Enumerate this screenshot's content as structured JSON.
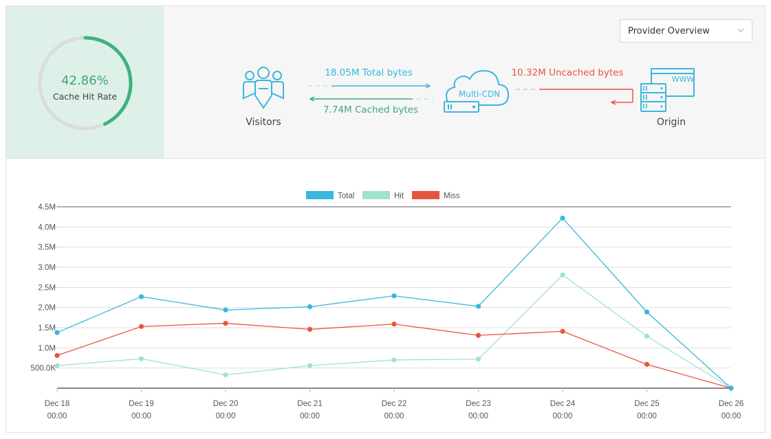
{
  "gauge": {
    "percent_text": "42.86%",
    "percent_value": 42.86,
    "label": "Cache Hit Rate"
  },
  "dropdown": {
    "selected": "Provider Overview"
  },
  "flow": {
    "visitors_label": "Visitors",
    "cdn_label": "Multi-CDN",
    "origin_label": "Origin",
    "www_label": "WWW",
    "total_bytes": "18.05M Total bytes",
    "cached_bytes": "7.74M Cached bytes",
    "uncached_bytes": "10.32M Uncached bytes"
  },
  "colors": {
    "total": "#3bb6de",
    "hit": "#9fe3cd",
    "miss": "#e8553e",
    "gauge": "#3db37e",
    "cached": "#3aaa7a"
  },
  "chart_data": {
    "type": "line",
    "x": [
      "Dec 18",
      "Dec 19",
      "Dec 20",
      "Dec 21",
      "Dec 22",
      "Dec 23",
      "Dec 24",
      "Dec 25",
      "Dec 26"
    ],
    "x_sublabels": [
      "00:00",
      "00:00",
      "00:00",
      "00:00",
      "00:00",
      "00:00",
      "00:00",
      "00:00",
      "00:00"
    ],
    "series": [
      {
        "name": "Total",
        "color": "#3bb6de",
        "values": [
          1380000,
          2270000,
          1940000,
          2020000,
          2290000,
          2030000,
          4220000,
          1890000,
          0
        ]
      },
      {
        "name": "Hit",
        "color": "#9fe3cd",
        "values": [
          560000,
          730000,
          330000,
          560000,
          700000,
          720000,
          2810000,
          1290000,
          0
        ]
      },
      {
        "name": "Miss",
        "color": "#e8553e",
        "values": [
          810000,
          1530000,
          1610000,
          1460000,
          1590000,
          1310000,
          1410000,
          590000,
          0
        ]
      }
    ],
    "y_ticks": [
      500000,
      1000000,
      1500000,
      2000000,
      2500000,
      3000000,
      3500000,
      4000000,
      4500000
    ],
    "y_tick_labels": [
      "500.0K",
      "1.0M",
      "1.5M",
      "2.0M",
      "2.5M",
      "3.0M",
      "3.5M",
      "4.0M",
      "4.5M"
    ],
    "ylim": [
      0,
      4500000
    ],
    "legend_position": "top-center",
    "grid": true
  }
}
